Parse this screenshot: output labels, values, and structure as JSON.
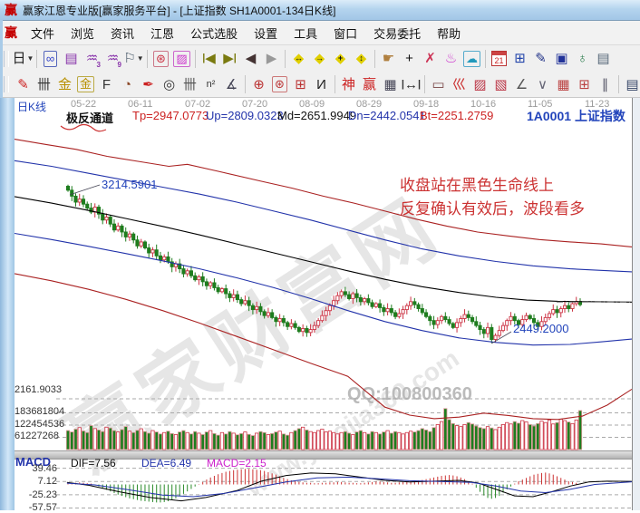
{
  "window": {
    "logo": "赢",
    "title": "赢家江恩专业版[赢家服务平台] - [上证指数  SH1A0001-134日K线]"
  },
  "menu": {
    "logo": "赢",
    "items": [
      "文件",
      "浏览",
      "资讯",
      "江恩",
      "公式选股",
      "设置",
      "工具",
      "窗口",
      "交易委托",
      "帮助"
    ]
  },
  "toolbar_row1": [
    {
      "name": "kline-period-icon",
      "glyph": "日",
      "color": "#222",
      "caret": true
    },
    {
      "sep": true
    },
    {
      "name": "overlay-curve-icon",
      "glyph": "∞",
      "color": "#3344cc",
      "box": "#5566bb"
    },
    {
      "name": "info-list-icon",
      "glyph": "▤",
      "color": "#8833aa"
    },
    {
      "name": "wave3-icon",
      "glyph": "♒",
      "color": "#8833aa",
      "sub": "3"
    },
    {
      "name": "wave9-icon",
      "glyph": "♒",
      "color": "#8833aa",
      "sub": "9"
    },
    {
      "name": "flag-tool-icon",
      "glyph": "⚐",
      "color": "#445566",
      "caret": true
    },
    {
      "sep": true
    },
    {
      "name": "gann-knot-icon",
      "glyph": "⊛",
      "color": "#cc3344",
      "box": "#cc7788"
    },
    {
      "name": "spectrum-icon",
      "glyph": "▨",
      "color": "#cc33cc",
      "box": "#cc66cc"
    },
    {
      "sep": true
    },
    {
      "name": "nav-first-icon",
      "glyph": "◀",
      "color": "#7a7a10",
      "pre": "|"
    },
    {
      "name": "nav-last-icon",
      "glyph": "▶",
      "color": "#7a7a10",
      "post": "|"
    },
    {
      "name": "nav-prev-icon",
      "glyph": "◀",
      "color": "#443333"
    },
    {
      "name": "nav-next-icon",
      "glyph": "▶",
      "color": "#999999"
    },
    {
      "sep": true
    },
    {
      "name": "zoom-h-icon",
      "glyph": "◆",
      "color": "#e0cf00",
      "over": "↔"
    },
    {
      "name": "compress-h-icon",
      "glyph": "◆",
      "color": "#e0cf00",
      "over": "→"
    },
    {
      "name": "expand-icon",
      "glyph": "◆",
      "color": "#e0cf00",
      "over": "+"
    },
    {
      "name": "move-icon",
      "glyph": "◆",
      "color": "#e0cf00",
      "over": "↕"
    },
    {
      "sep": true
    },
    {
      "name": "hand-tool-icon",
      "glyph": "☛",
      "color": "#b08040"
    },
    {
      "name": "crosshair-icon",
      "glyph": "+",
      "color": "#111"
    },
    {
      "name": "pin-marker-icon",
      "glyph": "✗",
      "color": "#cc3355"
    },
    {
      "name": "ribbon-marker-icon",
      "glyph": "♨",
      "color": "#cc33cc"
    },
    {
      "name": "brain-map-icon",
      "glyph": "☁",
      "color": "#2299bb",
      "box": "#55aacc"
    },
    {
      "sep": true
    },
    {
      "name": "calendar-icon",
      "special": "calendar",
      "text": "21"
    },
    {
      "name": "calculator-icon",
      "glyph": "⊞",
      "color": "#2244aa"
    },
    {
      "name": "notepad-icon",
      "glyph": "✎",
      "color": "#223388"
    },
    {
      "name": "save-icon",
      "glyph": "▣",
      "color": "#223399"
    },
    {
      "name": "export-globe-icon",
      "glyph": "♁",
      "color": "#227744"
    },
    {
      "name": "print-icon",
      "glyph": "▤",
      "color": "#556677"
    }
  ],
  "toolbar_row2": [
    {
      "name": "draw-pencil-icon",
      "glyph": "✎",
      "color": "#cc2222"
    },
    {
      "name": "gann-ruler-icon",
      "glyph": "卌",
      "color": "#333333"
    },
    {
      "name": "gold-section-icon",
      "glyph": "金",
      "color": "#b89000"
    },
    {
      "name": "gold-box-icon",
      "glyph": "金",
      "color": "#b89000",
      "box": "#bbaa44"
    },
    {
      "name": "f-tool-icon",
      "glyph": "F",
      "color": "#333333"
    },
    {
      "name": "spiral-icon",
      "glyph": "◔",
      "color": "#884422"
    },
    {
      "name": "rocket-icon",
      "glyph": "✒",
      "color": "#cc2222"
    },
    {
      "name": "time-circle-icon",
      "glyph": "◎",
      "color": "#333333"
    },
    {
      "name": "time-ruler-icon",
      "glyph": "卌",
      "color": "#555555"
    },
    {
      "name": "n2-tool-icon",
      "glyph": "n²",
      "color": "#333333"
    },
    {
      "name": "angle-tool-icon",
      "glyph": "∡",
      "color": "#444455"
    },
    {
      "sep": true
    },
    {
      "name": "gann-circle-icon",
      "glyph": "⊕",
      "color": "#bb3333"
    },
    {
      "name": "gann-wheel-icon",
      "glyph": "⊛",
      "color": "#bb3333",
      "box": "#cc7777"
    },
    {
      "name": "gann-square-icon",
      "glyph": "⊞",
      "color": "#bb3333"
    },
    {
      "name": "cycle-i-icon",
      "glyph": "И",
      "color": "#222222"
    },
    {
      "sep": true
    },
    {
      "name": "shen-tool-icon",
      "glyph": "神",
      "color": "#cc2222"
    },
    {
      "name": "ying-tool-icon",
      "glyph": "赢",
      "color": "#cc2222"
    },
    {
      "name": "grid-123-icon",
      "glyph": "▦",
      "color": "#444455"
    },
    {
      "name": "width-measure-icon",
      "glyph": "↔",
      "color": "#333333",
      "pre": "|",
      "post": "|"
    },
    {
      "sep": true
    },
    {
      "name": "rect-tool-icon",
      "glyph": "▭",
      "color": "#774444"
    },
    {
      "name": "fan-lines-icon",
      "glyph": "巛",
      "color": "#cc3333"
    },
    {
      "name": "gann-box-icon",
      "glyph": "▨",
      "color": "#bb3344"
    },
    {
      "name": "gann-grid-fan-icon",
      "glyph": "▧",
      "color": "#bb3344"
    },
    {
      "name": "angle-lines-icon",
      "glyph": "∠",
      "color": "#555555"
    },
    {
      "name": "v-lines-icon",
      "glyph": "∨",
      "color": "#666677"
    },
    {
      "name": "red-grid-icon",
      "glyph": "▦",
      "color": "#bb4444"
    },
    {
      "name": "red-grid2-icon",
      "glyph": "⊞",
      "color": "#bb4444"
    },
    {
      "name": "parallel-lines-icon",
      "glyph": "∥",
      "color": "#555566"
    },
    {
      "sep": true
    },
    {
      "name": "column-list-icon",
      "glyph": "▤",
      "color": "#334466"
    },
    {
      "name": "edge-tool-icon",
      "glyph": "Ⅰ",
      "color": "#cc3333"
    }
  ],
  "chart": {
    "period_label": "日K线",
    "dates": [
      "05-22",
      "06-11",
      "07-02",
      "07-20",
      "08-09",
      "08-29",
      "09-18",
      "10-16",
      "11-05",
      "11-23"
    ],
    "indicator_name": "极反通道",
    "tp_label": "Tp=2947.0773",
    "up_label": "Up=2809.0323",
    "md_label": "Md=2651.9949",
    "dn_label": "Dn=2442.0541",
    "bt_label": "Bt=2251.2759",
    "symbol_code": "1A0001",
    "symbol_name": "上证指数",
    "high_label": "3214.5901",
    "low_label": "2449.2000",
    "annotation_line1": "收盘站在黑色生命线上",
    "annotation_line2": "反复确认有效后，波段看多",
    "watermark_main": "赢家财富网",
    "watermark_url": "www.yingjia360.com",
    "watermark_qq": "QQ:100800360",
    "price_axis_label": "2161.9033",
    "volume_axis_labels": [
      "183681804",
      "122454536",
      "61227268"
    ],
    "macd_label": "MACD",
    "dif_label": "DIF=7.56",
    "dea_label": "DEA=6.49",
    "macd_value_label": "MACD=2.15",
    "macd_axis_labels": [
      "39.46",
      "7.12",
      "-25.23",
      "-57.57"
    ]
  },
  "colors": {
    "up": "#cc3344",
    "down": "#1e7d1e",
    "channel_red": "#aa2222",
    "channel_blue": "#2233aa",
    "channel_black": "#000000",
    "macd_red": "#cc3333",
    "macd_green": "#2a8a2a",
    "dif_line": "#000000",
    "dea_line": "#2233aa",
    "grid": "#aaaaaa",
    "label_blue": "#2244bb",
    "annotation_red": "#cc3333",
    "macd_magenta": "#cc22cc"
  },
  "chart_data": {
    "type": "candlestick",
    "title": "上证指数 SH1A0001 134日K线",
    "x_axis_dates": [
      "05-22",
      "06-11",
      "07-02",
      "07-20",
      "08-09",
      "08-29",
      "09-18",
      "10-16",
      "11-05",
      "11-23"
    ],
    "channel_values": {
      "Tp": 2947.0773,
      "Up": 2809.0323,
      "Md": 2651.9949,
      "Dn": 2442.0541,
      "Bt": 2251.2759
    },
    "price_axis_min": 2161.9033,
    "volume_gridlines": [
      61227268,
      122454536,
      183681804
    ],
    "high_annotation": 3214.5901,
    "low_annotation": 2449.2,
    "macd_current": {
      "dif": 7.56,
      "dea": 6.49,
      "macd": 2.15
    },
    "macd_axis": [
      39.46,
      7.12,
      -25.23,
      -57.57
    ],
    "closes": [
      3210,
      3180,
      3150,
      3165,
      3140,
      3120,
      3100,
      3125,
      3090,
      3060,
      3075,
      3040,
      3010,
      3030,
      3000,
      2975,
      2990,
      2960,
      2930,
      2950,
      2920,
      2895,
      2910,
      2880,
      2860,
      2875,
      2850,
      2825,
      2840,
      2815,
      2790,
      2805,
      2780,
      2760,
      2775,
      2750,
      2730,
      2745,
      2720,
      2700,
      2715,
      2690,
      2670,
      2685,
      2660,
      2640,
      2655,
      2630,
      2610,
      2625,
      2600,
      2580,
      2595,
      2570,
      2550,
      2565,
      2545,
      2525,
      2540,
      2520,
      2500,
      2515,
      2495,
      2510,
      2530,
      2555,
      2580,
      2605,
      2630,
      2655,
      2680,
      2700,
      2685,
      2665,
      2690,
      2670,
      2650,
      2665,
      2645,
      2625,
      2640,
      2620,
      2600,
      2615,
      2595,
      2575,
      2590,
      2610,
      2630,
      2650,
      2635,
      2615,
      2595,
      2575,
      2555,
      2535,
      2555,
      2575,
      2560,
      2540,
      2520,
      2545,
      2565,
      2585,
      2570,
      2550,
      2530,
      2510,
      2490,
      2520,
      2460,
      2480,
      2505,
      2530,
      2555,
      2575,
      2555,
      2535,
      2560,
      2580,
      2565,
      2545,
      2525,
      2550,
      2570,
      2590,
      2610,
      2595,
      2615,
      2630,
      2615,
      2640,
      2650,
      2635
    ],
    "volumes_millions": [
      95,
      88,
      102,
      110,
      93,
      85,
      120,
      105,
      98,
      90,
      112,
      108,
      95,
      88,
      100,
      115,
      92,
      85,
      96,
      104,
      90,
      82,
      95,
      88,
      78,
      85,
      92,
      80,
      75,
      88,
      95,
      85,
      78,
      90,
      82,
      75,
      88,
      95,
      80,
      72,
      85,
      78,
      90,
      82,
      74,
      80,
      88,
      76,
      70,
      82,
      90,
      85,
      75,
      80,
      88,
      92,
      78,
      72,
      85,
      95,
      105,
      112,
      98,
      90,
      85,
      95,
      102,
      88,
      92,
      85,
      78,
      85,
      90,
      82,
      75,
      88,
      95,
      85,
      78,
      90,
      85,
      78,
      88,
      95,
      82,
      90,
      85,
      78,
      85,
      92,
      88,
      95,
      105,
      98,
      90,
      110,
      125,
      140,
      205,
      150,
      130,
      120,
      115,
      125,
      135,
      128,
      118,
      110,
      105,
      115,
      108,
      100,
      112,
      125,
      135,
      128,
      140,
      132,
      145,
      138,
      125,
      118,
      130,
      142,
      135,
      148,
      128,
      135,
      152,
      145,
      138,
      130,
      148,
      195
    ],
    "macd_hist": [
      2,
      3,
      4,
      5,
      4,
      3,
      2,
      -2,
      -5,
      -9,
      -13,
      -17,
      -21,
      -25,
      -28,
      -31,
      -34,
      -36,
      -38,
      -40,
      -41,
      -42,
      -43,
      -44,
      -44,
      -43,
      -41,
      -38,
      -34,
      -29,
      -23,
      -17,
      -11,
      -5,
      1,
      6,
      12,
      17,
      21,
      25,
      28,
      31,
      33,
      35,
      36,
      37,
      38,
      38,
      37,
      36,
      35,
      33,
      30,
      27,
      24,
      20,
      16,
      13,
      10,
      8,
      6,
      5,
      4,
      4,
      3,
      3,
      4,
      4,
      5,
      5,
      6,
      6,
      5,
      4,
      4,
      3,
      3,
      4,
      5,
      6,
      7,
      7,
      6,
      5,
      4,
      4,
      5,
      6,
      7,
      8,
      9,
      10,
      11,
      13,
      15,
      17,
      19,
      21,
      22,
      23,
      22,
      20,
      17,
      13,
      8,
      2,
      -8,
      -18,
      -27,
      -33,
      -35,
      -33,
      -28,
      -20,
      -12,
      -5,
      2,
      8,
      12,
      16,
      20,
      24,
      26,
      28,
      29,
      27,
      24,
      20,
      16,
      12,
      8,
      6,
      4,
      2
    ],
    "dif_points": [
      [
        0.085,
        5
      ],
      [
        0.12,
        -2
      ],
      [
        0.17,
        -18
      ],
      [
        0.22,
        -32
      ],
      [
        0.27,
        -40
      ],
      [
        0.31,
        -32
      ],
      [
        0.36,
        -15
      ],
      [
        0.4,
        8
      ],
      [
        0.44,
        22
      ],
      [
        0.48,
        28
      ],
      [
        0.52,
        26
      ],
      [
        0.56,
        18
      ],
      [
        0.6,
        10
      ],
      [
        0.64,
        6
      ],
      [
        0.68,
        8
      ],
      [
        0.72,
        10
      ],
      [
        0.75,
        4
      ],
      [
        0.78,
        -12
      ],
      [
        0.81,
        -28
      ],
      [
        0.84,
        -30
      ],
      [
        0.87,
        -18
      ],
      [
        0.9,
        -4
      ],
      [
        0.93,
        6
      ],
      [
        0.96,
        8
      ],
      [
        1,
        7.5
      ]
    ],
    "dea_points": [
      [
        0.085,
        3
      ],
      [
        0.13,
        -1
      ],
      [
        0.18,
        -12
      ],
      [
        0.24,
        -26
      ],
      [
        0.29,
        -30
      ],
      [
        0.34,
        -22
      ],
      [
        0.39,
        -8
      ],
      [
        0.44,
        6
      ],
      [
        0.49,
        16
      ],
      [
        0.54,
        18
      ],
      [
        0.59,
        14
      ],
      [
        0.64,
        9
      ],
      [
        0.69,
        7
      ],
      [
        0.74,
        5
      ],
      [
        0.78,
        -4
      ],
      [
        0.82,
        -16
      ],
      [
        0.86,
        -20
      ],
      [
        0.9,
        -12
      ],
      [
        0.94,
        0
      ],
      [
        1,
        6.5
      ]
    ],
    "channel_lines": {
      "tp": [
        [
          0,
          3466
        ],
        [
          0.05,
          3440
        ],
        [
          0.1,
          3415
        ],
        [
          0.15,
          3380
        ],
        [
          0.2,
          3355
        ],
        [
          0.25,
          3330
        ],
        [
          0.28,
          3340
        ],
        [
          0.33,
          3305
        ],
        [
          0.4,
          3255
        ],
        [
          0.45,
          3220
        ],
        [
          0.5,
          3180
        ],
        [
          0.55,
          3145
        ],
        [
          0.6,
          3105
        ],
        [
          0.65,
          3065
        ],
        [
          0.7,
          3030
        ],
        [
          0.75,
          3000
        ],
        [
          0.8,
          2980
        ],
        [
          0.85,
          2962
        ],
        [
          0.9,
          2950
        ],
        [
          0.95,
          2940
        ],
        [
          1,
          2925
        ]
      ],
      "up": [
        [
          0,
          3358
        ],
        [
          0.06,
          3330
        ],
        [
          0.12,
          3295
        ],
        [
          0.18,
          3260
        ],
        [
          0.24,
          3225
        ],
        [
          0.3,
          3190
        ],
        [
          0.36,
          3150
        ],
        [
          0.42,
          3105
        ],
        [
          0.48,
          3060
        ],
        [
          0.54,
          3010
        ],
        [
          0.6,
          2960
        ],
        [
          0.66,
          2915
        ],
        [
          0.72,
          2880
        ],
        [
          0.78,
          2852
        ],
        [
          0.84,
          2830
        ],
        [
          0.9,
          2815
        ],
        [
          0.95,
          2807
        ],
        [
          1,
          2800
        ]
      ],
      "md": [
        [
          0,
          3178
        ],
        [
          0.06,
          3145
        ],
        [
          0.12,
          3108
        ],
        [
          0.18,
          3068
        ],
        [
          0.24,
          3028
        ],
        [
          0.3,
          2985
        ],
        [
          0.36,
          2940
        ],
        [
          0.42,
          2895
        ],
        [
          0.48,
          2850
        ],
        [
          0.54,
          2805
        ],
        [
          0.6,
          2762
        ],
        [
          0.66,
          2725
        ],
        [
          0.72,
          2696
        ],
        [
          0.78,
          2672
        ],
        [
          0.83,
          2658
        ],
        [
          0.88,
          2652
        ],
        [
          0.93,
          2650
        ],
        [
          1,
          2648
        ]
      ],
      "dn": [
        [
          0,
          2993
        ],
        [
          0.06,
          2962
        ],
        [
          0.12,
          2928
        ],
        [
          0.18,
          2892
        ],
        [
          0.24,
          2855
        ],
        [
          0.3,
          2815
        ],
        [
          0.36,
          2770
        ],
        [
          0.42,
          2720
        ],
        [
          0.48,
          2665
        ],
        [
          0.54,
          2605
        ],
        [
          0.6,
          2550
        ],
        [
          0.66,
          2505
        ],
        [
          0.72,
          2468
        ],
        [
          0.78,
          2445
        ],
        [
          0.84,
          2432
        ],
        [
          0.9,
          2435
        ],
        [
          0.95,
          2448
        ],
        [
          1,
          2462
        ]
      ],
      "bt": [
        [
          0,
          2791
        ],
        [
          0.06,
          2755
        ],
        [
          0.12,
          2712
        ],
        [
          0.18,
          2662
        ],
        [
          0.24,
          2605
        ],
        [
          0.3,
          2542
        ],
        [
          0.36,
          2475
        ],
        [
          0.42,
          2408
        ],
        [
          0.48,
          2340
        ],
        [
          0.54,
          2275
        ],
        [
          0.6,
          2120
        ],
        [
          0.64,
          2080
        ],
        [
          0.68,
          2062
        ],
        [
          0.72,
          2070
        ],
        [
          0.76,
          2090
        ],
        [
          0.8,
          2078
        ],
        [
          0.84,
          2062
        ],
        [
          0.88,
          2058
        ],
        [
          0.92,
          2075
        ],
        [
          0.96,
          2130
        ],
        [
          1,
          2210
        ]
      ]
    }
  }
}
